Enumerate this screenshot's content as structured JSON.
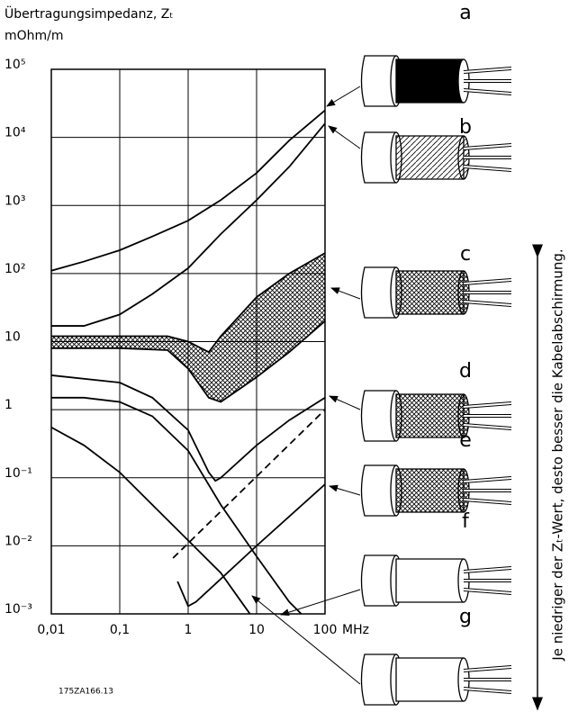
{
  "chart_data": {
    "type": "line",
    "log_x": true,
    "log_y": true,
    "grid": true,
    "y_label": "Übertragungsimpedanz, Zₜ",
    "y_unit": "mOhm/m",
    "x_unit": "MHz",
    "xlim": [
      0.01,
      100
    ],
    "ylim": [
      0.001,
      100000
    ],
    "xticks": [
      {
        "value": 0.01,
        "label": "0,01"
      },
      {
        "value": 0.1,
        "label": "0,1"
      },
      1,
      10,
      100
    ],
    "yticks": [
      {
        "value": 0.001,
        "label": "10⁻³"
      },
      {
        "value": 0.01,
        "label": "10⁻²"
      },
      {
        "value": 0.1,
        "label": "10⁻¹"
      },
      1,
      10,
      {
        "value": 100,
        "label": "10²"
      },
      {
        "value": 1000,
        "label": "10³"
      },
      {
        "value": 10000,
        "label": "10⁴"
      },
      {
        "value": 100000,
        "label": "10⁵"
      }
    ],
    "series": [
      {
        "name": "a",
        "color": "#000000",
        "x": [
          0.01,
          0.03,
          0.1,
          0.3,
          1,
          3,
          10,
          30,
          100
        ],
        "values": [
          110,
          150,
          220,
          350,
          600,
          1200,
          3000,
          9000,
          25000
        ]
      },
      {
        "name": "b",
        "color": "#000000",
        "x": [
          0.01,
          0.03,
          0.1,
          0.3,
          1,
          3,
          10,
          30,
          100
        ],
        "values": [
          17,
          17,
          25,
          50,
          120,
          380,
          1200,
          3700,
          16000
        ]
      },
      {
        "name": "c",
        "color": "#000000",
        "x": [
          0.01,
          0.1,
          0.5,
          1,
          2,
          3,
          10,
          30,
          100
        ],
        "values": [
          12,
          12,
          12,
          10,
          7,
          12,
          45,
          100,
          200
        ],
        "lower": [
          8,
          8,
          7.5,
          4,
          1.5,
          1.3,
          3,
          7,
          20
        ]
      },
      {
        "name": "d",
        "color": "#000000",
        "x": [
          0.01,
          0.1,
          0.3,
          1,
          2,
          2.5,
          3,
          10,
          30,
          100
        ],
        "values": [
          3.2,
          2.5,
          1.5,
          0.5,
          0.12,
          0.09,
          0.1,
          0.3,
          0.7,
          1.5
        ]
      },
      {
        "name": "e",
        "color": "#000000",
        "x": [
          0.7,
          1,
          1.3,
          10,
          100
        ],
        "values": [
          0.003,
          0.0013,
          0.0015,
          0.01,
          0.08
        ]
      },
      {
        "name": "f",
        "color": "#000000",
        "x": [
          0.01,
          0.03,
          0.1,
          0.3,
          1,
          3,
          10,
          30,
          45
        ],
        "values": [
          1.5,
          1.5,
          1.3,
          0.8,
          0.25,
          0.04,
          0.007,
          0.0015,
          0.001
        ]
      },
      {
        "name": "g",
        "color": "#000000",
        "x": [
          0.01,
          0.03,
          0.1,
          0.3,
          1,
          3,
          6,
          8
        ],
        "values": [
          0.55,
          0.3,
          0.12,
          0.04,
          0.012,
          0.004,
          0.0015,
          0.001
        ]
      },
      {
        "color": "#000000",
        "dash": true,
        "x": [
          0.6,
          100
        ],
        "values": [
          0.0066,
          1
        ]
      }
    ],
    "side_note": "Je niedriger der Zₜ-Wert, desto besser die Kabelabschirmung.",
    "code": "175ZA166.13"
  }
}
